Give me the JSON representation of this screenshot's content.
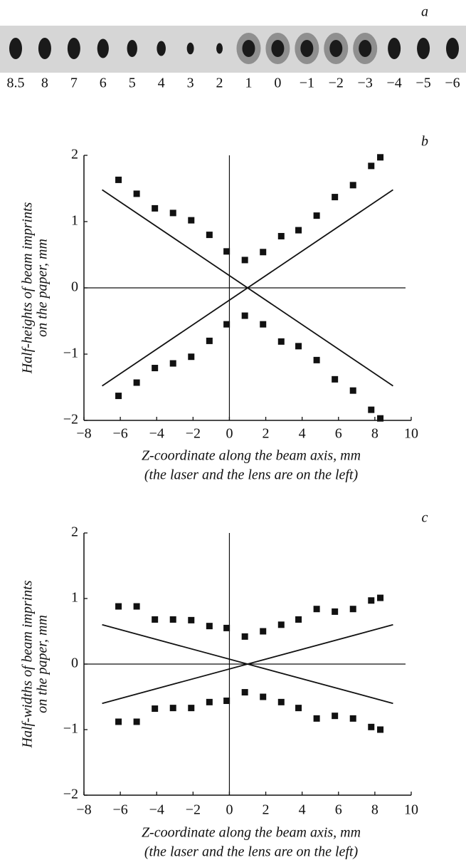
{
  "figure": {
    "label": "a",
    "scale_labels": [
      "8.5",
      "8",
      "7",
      "6",
      "5",
      "4",
      "3",
      "2",
      "1",
      "0",
      "−1",
      "−2",
      "−3",
      "−4",
      "−5",
      "−6"
    ]
  },
  "chart_data": [
    {
      "type": "scatter",
      "label": "b",
      "ylabel": [
        "Half-heights of beam imprints",
        "on the paper, mm"
      ],
      "xlabel": [
        "Z-coordinate along the beam axis, mm",
        "(the laser and the lens are on the left)"
      ],
      "xlim": [
        -8,
        10
      ],
      "ylim": [
        -2,
        2
      ],
      "xticks": [
        {
          "value": -8,
          "label": "−8"
        },
        {
          "value": -6,
          "label": "−6"
        },
        {
          "value": -4,
          "label": "−4"
        },
        {
          "value": -2,
          "label": "−2"
        },
        0,
        2,
        4,
        6,
        8,
        10
      ],
      "yticks": [
        {
          "value": -2,
          "label": "−2"
        },
        {
          "value": -1,
          "label": "−1"
        },
        0,
        1,
        2
      ],
      "zero_lines": true,
      "series": [
        {
          "color": "#111111",
          "x": [
            -6.1,
            -5.1,
            -4.1,
            -3.1,
            -2.1,
            -1.1,
            -0.15,
            0.85,
            1.85,
            2.85,
            3.8,
            4.8,
            5.8,
            6.8,
            7.8,
            8.3
          ],
          "values": [
            1.63,
            1.42,
            1.2,
            1.13,
            1.02,
            0.8,
            0.55,
            0.42,
            0.54,
            0.78,
            0.87,
            1.09,
            1.37,
            1.55,
            1.84,
            1.97
          ]
        },
        {
          "color": "#111111",
          "x": [
            -6.1,
            -5.1,
            -4.1,
            -3.1,
            -2.1,
            -1.1,
            -0.15,
            0.85,
            1.85,
            2.85,
            3.8,
            4.8,
            5.8,
            6.8,
            7.8,
            8.3
          ],
          "values": [
            -1.63,
            -1.43,
            -1.21,
            -1.14,
            -1.04,
            -0.8,
            -0.55,
            -0.42,
            -0.55,
            -0.81,
            -0.88,
            -1.09,
            -1.38,
            -1.55,
            -1.84,
            -1.97
          ]
        }
      ],
      "lines": [
        {
          "x": [
            -7,
            9
          ],
          "y": [
            1.48,
            -1.48
          ]
        },
        {
          "x": [
            -7,
            9
          ],
          "y": [
            -1.48,
            1.48
          ]
        }
      ]
    },
    {
      "type": "scatter",
      "label": "c",
      "ylabel": [
        "Half-widths of beam imprints",
        "on the paper, mm"
      ],
      "xlabel": [
        "Z-coordinate along the beam axis, mm",
        "(the laser and the lens are on the left)"
      ],
      "xlim": [
        -8,
        10
      ],
      "ylim": [
        -2,
        2
      ],
      "xticks": [
        {
          "value": -8,
          "label": "−8"
        },
        {
          "value": -6,
          "label": "−6"
        },
        {
          "value": -4,
          "label": "−4"
        },
        {
          "value": -2,
          "label": "−2"
        },
        0,
        2,
        4,
        6,
        8,
        10
      ],
      "yticks": [
        {
          "value": -2,
          "label": "−2"
        },
        {
          "value": -1,
          "label": "−1"
        },
        0,
        1,
        2
      ],
      "zero_lines": true,
      "series": [
        {
          "color": "#111111",
          "x": [
            -6.1,
            -5.1,
            -4.1,
            -3.1,
            -2.1,
            -1.1,
            -0.15,
            0.85,
            1.85,
            2.85,
            3.8,
            4.8,
            5.8,
            6.8,
            7.8,
            8.3
          ],
          "values": [
            0.88,
            0.88,
            0.68,
            0.68,
            0.67,
            0.58,
            0.55,
            0.42,
            0.5,
            0.6,
            0.68,
            0.84,
            0.8,
            0.84,
            0.97,
            1.01
          ]
        },
        {
          "color": "#111111",
          "x": [
            -6.1,
            -5.1,
            -4.1,
            -3.1,
            -2.1,
            -1.1,
            -0.15,
            0.85,
            1.85,
            2.85,
            3.8,
            4.8,
            5.8,
            6.8,
            7.8,
            8.3
          ],
          "values": [
            -0.88,
            -0.88,
            -0.68,
            -0.67,
            -0.67,
            -0.58,
            -0.56,
            -0.43,
            -0.5,
            -0.58,
            -0.67,
            -0.83,
            -0.79,
            -0.83,
            -0.96,
            -1.0
          ]
        }
      ],
      "lines": [
        {
          "x": [
            -7,
            9
          ],
          "y": [
            0.6,
            -0.6
          ]
        },
        {
          "x": [
            -7,
            9
          ],
          "y": [
            -0.6,
            0.6
          ]
        }
      ]
    }
  ]
}
